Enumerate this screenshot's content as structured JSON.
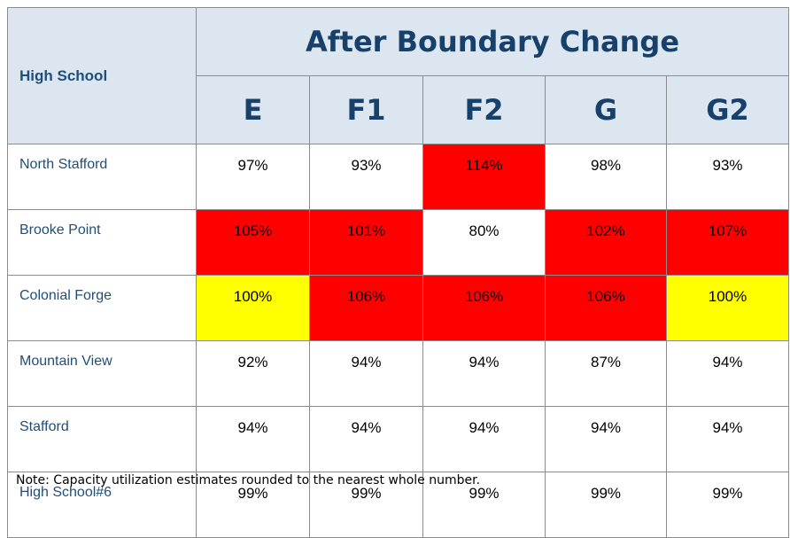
{
  "table": {
    "row_header_label": "High School",
    "title": "After Boundary Change",
    "columns": [
      "E",
      "F1",
      "F2",
      "G",
      "G2"
    ],
    "rows": [
      {
        "school": "North Stafford",
        "values": [
          "97%",
          "93%",
          "114%",
          "98%",
          "93%"
        ],
        "colors": [
          "#ffffff",
          "#ffffff",
          "#ff0000",
          "#ffffff",
          "#ffffff"
        ]
      },
      {
        "school": "Brooke Point",
        "values": [
          "105%",
          "101%",
          "80%",
          "102%",
          "107%"
        ],
        "colors": [
          "#ff0000",
          "#ff0000",
          "#ffffff",
          "#ff0000",
          "#ff0000"
        ]
      },
      {
        "school": "Colonial Forge",
        "values": [
          "100%",
          "106%",
          "106%",
          "106%",
          "100%"
        ],
        "colors": [
          "#ffff00",
          "#ff0000",
          "#ff0000",
          "#ff0000",
          "#ffff00"
        ]
      },
      {
        "school": "Mountain View",
        "values": [
          "92%",
          "94%",
          "94%",
          "87%",
          "94%"
        ],
        "colors": [
          "#ffffff",
          "#ffffff",
          "#ffffff",
          "#ffffff",
          "#ffffff"
        ]
      },
      {
        "school": "Stafford",
        "values": [
          "94%",
          "94%",
          "94%",
          "94%",
          "94%"
        ],
        "colors": [
          "#ffffff",
          "#ffffff",
          "#ffffff",
          "#ffffff",
          "#ffffff"
        ]
      },
      {
        "school": "High School#6",
        "values": [
          "99%",
          "99%",
          "99%",
          "99%",
          "99%"
        ],
        "colors": [
          "#ffffff",
          "#ffffff",
          "#ffffff",
          "#ffffff",
          "#ffffff"
        ]
      }
    ]
  },
  "note": "Note: Capacity utilization estimates rounded to the nearest whole number."
}
